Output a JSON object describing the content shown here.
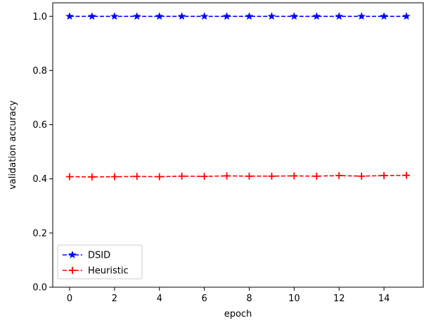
{
  "chart_data": {
    "type": "line",
    "title": "",
    "xlabel": "epoch",
    "ylabel": "validation accuracy",
    "xlim": [
      -0.75,
      15.75
    ],
    "ylim": [
      0.0,
      1.05
    ],
    "xticks": [
      0,
      2,
      4,
      6,
      8,
      10,
      12,
      14
    ],
    "yticks": [
      0.0,
      0.2,
      0.4,
      0.6,
      0.8,
      1.0
    ],
    "xtick_labels": [
      "0",
      "2",
      "4",
      "6",
      "8",
      "10",
      "12",
      "14"
    ],
    "ytick_labels": [
      "0.0",
      "0.2",
      "0.4",
      "0.6",
      "0.8",
      "1.0"
    ],
    "grid": false,
    "legend_position": "lower-left",
    "x": [
      0,
      1,
      2,
      3,
      4,
      5,
      6,
      7,
      8,
      9,
      10,
      11,
      12,
      13,
      14,
      15
    ],
    "series": [
      {
        "name": "DSID",
        "color": "#0000ff",
        "line_style": "dashed",
        "marker": "star",
        "values": [
          1.0,
          1.0,
          1.0,
          1.0,
          1.0,
          1.0,
          1.0,
          1.0,
          1.0,
          1.0,
          1.0,
          1.0,
          1.0,
          1.0,
          1.0,
          1.0
        ]
      },
      {
        "name": "Heuristic",
        "color": "#ff0000",
        "line_style": "dashed",
        "marker": "plus",
        "values": [
          0.408,
          0.407,
          0.408,
          0.409,
          0.408,
          0.41,
          0.409,
          0.411,
          0.41,
          0.41,
          0.411,
          0.41,
          0.412,
          0.41,
          0.412,
          0.413
        ]
      }
    ]
  }
}
